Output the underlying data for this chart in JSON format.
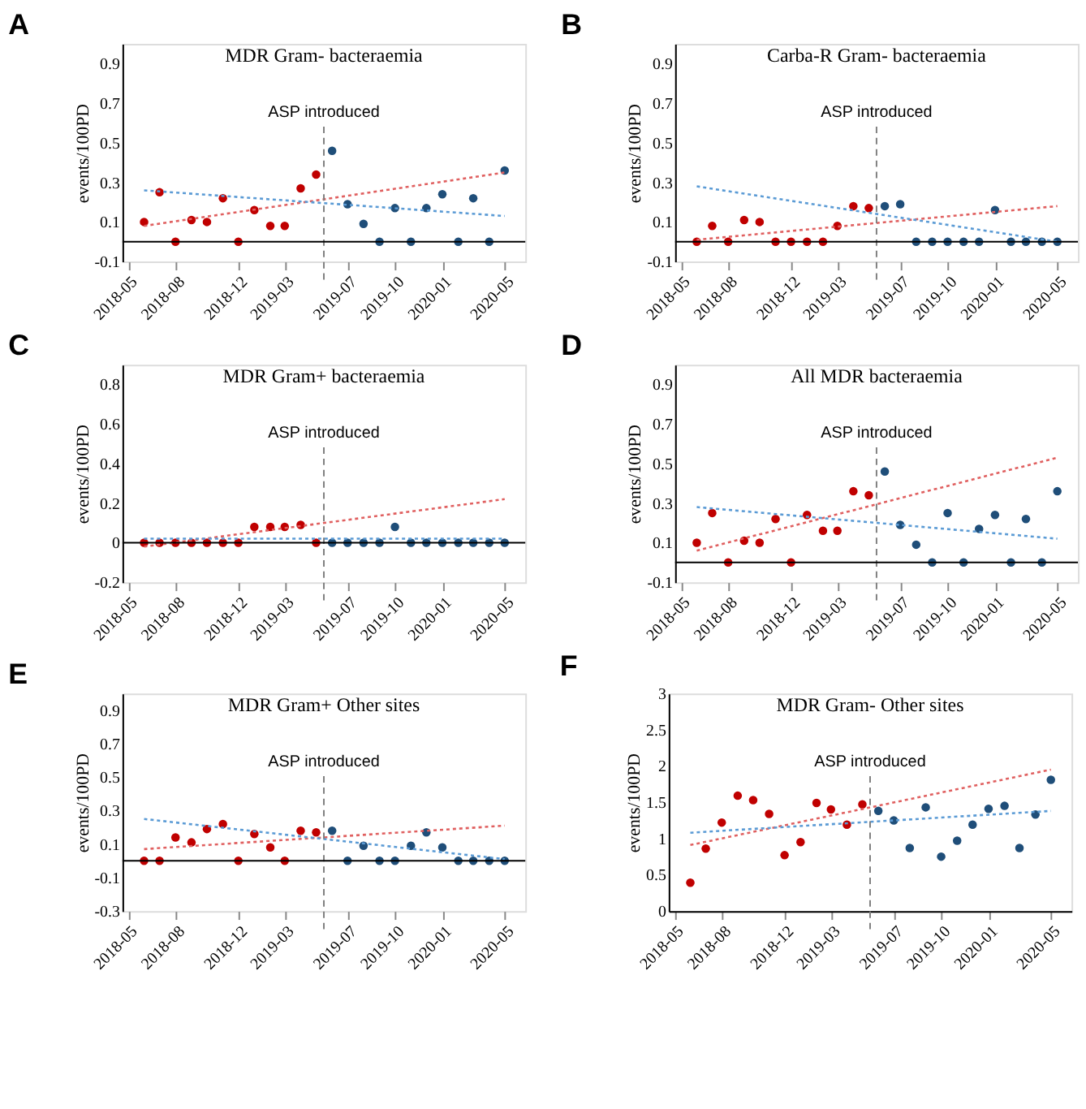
{
  "chart_data": [
    {
      "type": "scatter",
      "title": "MDR Gram- bacteraemia",
      "annotations": [
        "A"
      ],
      "ylabel": "events/100PD",
      "xlim": [
        "2018-04-20",
        "2020-06-10"
      ],
      "xticks": [
        "2018-05",
        "2018-08",
        "2018-12",
        "2019-03",
        "2019-07",
        "2019-10",
        "2020-01",
        "2020-05"
      ],
      "ylim": [
        -0.1,
        1.0
      ],
      "yticks": [
        -0.1,
        0.1,
        0.3,
        0.5,
        0.7,
        0.9
      ],
      "grid": false,
      "legend": false,
      "ref_lines": [
        {
          "axis": "x",
          "value": "2019-05-16",
          "label": "ASP introduced",
          "line_style": "dashed",
          "color": "#808080"
        },
        {
          "axis": "y",
          "value": 0,
          "line_style": "solid",
          "color": "#000000"
        }
      ],
      "series": [
        {
          "marker": "circle",
          "color": "#c00000",
          "x": [
            "2018-06",
            "2018-07",
            "2018-08",
            "2018-09",
            "2018-10",
            "2018-11",
            "2018-12",
            "2019-01",
            "2019-02",
            "2019-03",
            "2019-04",
            "2019-05"
          ],
          "values": [
            0.1,
            0.25,
            0,
            0.11,
            0.1,
            0.22,
            0,
            0.16,
            0.08,
            0.08,
            0.27,
            0.34
          ]
        },
        {
          "marker": "circle",
          "color": "#1f4e79",
          "x": [
            "2019-06",
            "2019-07",
            "2019-08",
            "2019-09",
            "2019-10",
            "2019-11",
            "2019-12",
            "2020-01",
            "2020-02",
            "2020-03",
            "2020-04",
            "2020-05"
          ],
          "values": [
            0.46,
            0.19,
            0.09,
            0,
            0.17,
            0,
            0.17,
            0.24,
            0,
            0.22,
            0,
            0.36
          ]
        },
        {
          "type": "line",
          "marker": "none",
          "line_style": "dotted",
          "color": "#e06060",
          "x": [
            "2018-06",
            "2020-05"
          ],
          "values": [
            0.08,
            0.35
          ]
        },
        {
          "type": "line",
          "marker": "none",
          "line_style": "dotted",
          "color": "#5b9bd5",
          "x": [
            "2018-06",
            "2020-05"
          ],
          "values": [
            0.26,
            0.13
          ]
        }
      ]
    },
    {
      "type": "scatter",
      "title": "Carba-R Gram- bacteraemia",
      "annotations": [
        "B"
      ],
      "ylabel": "events/100PD",
      "xlim": [
        "2018-04-20",
        "2020-06-10"
      ],
      "xticks": [
        "2018-05",
        "2018-08",
        "2018-12",
        "2019-03",
        "2019-07",
        "2019-10",
        "2020-01",
        "2020-05"
      ],
      "ylim": [
        -0.1,
        1.0
      ],
      "yticks": [
        -0.1,
        0.1,
        0.3,
        0.5,
        0.7,
        0.9
      ],
      "grid": false,
      "legend": false,
      "ref_lines": [
        {
          "axis": "x",
          "value": "2019-05-16",
          "label": "ASP introduced",
          "line_style": "dashed",
          "color": "#808080"
        },
        {
          "axis": "y",
          "value": 0,
          "line_style": "solid",
          "color": "#000000"
        }
      ],
      "series": [
        {
          "marker": "circle",
          "color": "#c00000",
          "x": [
            "2018-06",
            "2018-07",
            "2018-08",
            "2018-09",
            "2018-10",
            "2018-11",
            "2018-12",
            "2019-01",
            "2019-02",
            "2019-03",
            "2019-04",
            "2019-05"
          ],
          "values": [
            0,
            0.08,
            0,
            0.11,
            0.1,
            0,
            0,
            0,
            0,
            0.08,
            0.18,
            0.17
          ]
        },
        {
          "marker": "circle",
          "color": "#1f4e79",
          "x": [
            "2019-06",
            "2019-07",
            "2019-08",
            "2019-09",
            "2019-10",
            "2019-11",
            "2019-12",
            "2020-01",
            "2020-02",
            "2020-03",
            "2020-04",
            "2020-05"
          ],
          "values": [
            0.18,
            0.19,
            0,
            0,
            0,
            0,
            0,
            0.16,
            0,
            0,
            0,
            0
          ]
        },
        {
          "type": "line",
          "marker": "none",
          "line_style": "dotted",
          "color": "#e06060",
          "x": [
            "2018-06",
            "2020-05"
          ],
          "values": [
            0.01,
            0.18
          ]
        },
        {
          "type": "line",
          "marker": "none",
          "line_style": "dotted",
          "color": "#5b9bd5",
          "x": [
            "2018-06",
            "2020-05"
          ],
          "values": [
            0.28,
            0.0
          ]
        }
      ]
    },
    {
      "type": "scatter",
      "title": "MDR Gram+ bacteraemia",
      "annotations": [
        "C"
      ],
      "ylabel": "events/100PD",
      "xlim": [
        "2018-04-20",
        "2020-06-10"
      ],
      "xticks": [
        "2018-05",
        "2018-08",
        "2018-12",
        "2019-03",
        "2019-07",
        "2019-10",
        "2020-01",
        "2020-05"
      ],
      "ylim": [
        -0.2,
        0.9
      ],
      "yticks": [
        -0.2,
        0,
        0.2,
        0.4,
        0.6,
        0.8
      ],
      "grid": false,
      "legend": false,
      "ref_lines": [
        {
          "axis": "x",
          "value": "2019-05-16",
          "label": "ASP introduced",
          "line_style": "dashed",
          "color": "#808080"
        },
        {
          "axis": "y",
          "value": 0,
          "line_style": "solid",
          "color": "#000000"
        }
      ],
      "series": [
        {
          "marker": "circle",
          "color": "#c00000",
          "x": [
            "2018-06",
            "2018-07",
            "2018-08",
            "2018-09",
            "2018-10",
            "2018-11",
            "2018-12",
            "2019-01",
            "2019-02",
            "2019-03",
            "2019-04",
            "2019-05"
          ],
          "values": [
            0,
            0,
            0,
            0,
            0,
            0,
            0,
            0.08,
            0.08,
            0.08,
            0.09,
            0
          ]
        },
        {
          "marker": "circle",
          "color": "#1f4e79",
          "x": [
            "2019-06",
            "2019-07",
            "2019-08",
            "2019-09",
            "2019-10",
            "2019-11",
            "2019-12",
            "2020-01",
            "2020-02",
            "2020-03",
            "2020-04",
            "2020-05"
          ],
          "values": [
            0,
            0,
            0,
            0,
            0.08,
            0,
            0,
            0,
            0,
            0,
            0,
            0
          ]
        },
        {
          "type": "line",
          "marker": "none",
          "line_style": "dotted",
          "color": "#e06060",
          "x": [
            "2018-06",
            "2020-05"
          ],
          "values": [
            -0.02,
            0.22
          ]
        },
        {
          "type": "line",
          "marker": "none",
          "line_style": "dotted",
          "color": "#5b9bd5",
          "x": [
            "2018-06",
            "2020-05"
          ],
          "values": [
            0.02,
            0.02
          ]
        }
      ]
    },
    {
      "type": "scatter",
      "title": "All MDR bacteraemia",
      "annotations": [
        "D"
      ],
      "ylabel": "events/100PD",
      "xlim": [
        "2018-04-20",
        "2020-06-10"
      ],
      "xticks": [
        "2018-05",
        "2018-08",
        "2018-12",
        "2019-03",
        "2019-07",
        "2019-10",
        "2020-01",
        "2020-05"
      ],
      "ylim": [
        -0.1,
        1.0
      ],
      "yticks": [
        -0.1,
        0.1,
        0.3,
        0.5,
        0.7,
        0.9
      ],
      "grid": false,
      "legend": false,
      "ref_lines": [
        {
          "axis": "x",
          "value": "2019-05-16",
          "label": "ASP introduced",
          "line_style": "dashed",
          "color": "#808080"
        },
        {
          "axis": "y",
          "value": 0,
          "line_style": "solid",
          "color": "#000000"
        }
      ],
      "series": [
        {
          "marker": "circle",
          "color": "#c00000",
          "x": [
            "2018-06",
            "2018-07",
            "2018-08",
            "2018-09",
            "2018-10",
            "2018-11",
            "2018-12",
            "2019-01",
            "2019-02",
            "2019-03",
            "2019-04",
            "2019-05"
          ],
          "values": [
            0.1,
            0.25,
            0,
            0.11,
            0.1,
            0.22,
            0,
            0.24,
            0.16,
            0.16,
            0.36,
            0.34
          ]
        },
        {
          "marker": "circle",
          "color": "#1f4e79",
          "x": [
            "2019-06",
            "2019-07",
            "2019-08",
            "2019-09",
            "2019-10",
            "2019-11",
            "2019-12",
            "2020-01",
            "2020-02",
            "2020-03",
            "2020-04",
            "2020-05"
          ],
          "values": [
            0.46,
            0.19,
            0.09,
            0,
            0.25,
            0,
            0.17,
            0.24,
            0,
            0.22,
            0,
            0.36
          ]
        },
        {
          "type": "line",
          "marker": "none",
          "line_style": "dotted",
          "color": "#e06060",
          "x": [
            "2018-06",
            "2020-05"
          ],
          "values": [
            0.06,
            0.53
          ]
        },
        {
          "type": "line",
          "marker": "none",
          "line_style": "dotted",
          "color": "#5b9bd5",
          "x": [
            "2018-06",
            "2020-05"
          ],
          "values": [
            0.28,
            0.12
          ]
        }
      ]
    },
    {
      "type": "scatter",
      "title": "MDR Gram+ Other sites",
      "annotations": [
        "E"
      ],
      "ylabel": "events/100PD",
      "xlim": [
        "2018-04-20",
        "2020-06-10"
      ],
      "xticks": [
        "2018-05",
        "2018-08",
        "2018-12",
        "2019-03",
        "2019-07",
        "2019-10",
        "2020-01",
        "2020-05"
      ],
      "ylim": [
        -0.3,
        1.0
      ],
      "yticks": [
        -0.3,
        -0.1,
        0.1,
        0.3,
        0.5,
        0.7,
        0.9
      ],
      "grid": false,
      "legend": false,
      "ref_lines": [
        {
          "axis": "x",
          "value": "2019-05-16",
          "label": "ASP introduced",
          "line_style": "dashed",
          "color": "#808080"
        },
        {
          "axis": "y",
          "value": 0,
          "line_style": "solid",
          "color": "#000000"
        }
      ],
      "series": [
        {
          "marker": "circle",
          "color": "#c00000",
          "x": [
            "2018-06",
            "2018-07",
            "2018-08",
            "2018-09",
            "2018-10",
            "2018-11",
            "2018-12",
            "2019-01",
            "2019-02",
            "2019-03",
            "2019-04",
            "2019-05"
          ],
          "values": [
            0,
            0,
            0.14,
            0.11,
            0.19,
            0.22,
            0,
            0.16,
            0.08,
            0,
            0.18,
            0.17
          ]
        },
        {
          "marker": "circle",
          "color": "#1f4e79",
          "x": [
            "2019-06",
            "2019-07",
            "2019-08",
            "2019-09",
            "2019-10",
            "2019-11",
            "2019-12",
            "2020-01",
            "2020-02",
            "2020-03",
            "2020-04",
            "2020-05"
          ],
          "values": [
            0.18,
            0,
            0.09,
            0,
            0,
            0.09,
            0.17,
            0.08,
            0,
            0,
            0,
            0
          ]
        },
        {
          "type": "line",
          "marker": "none",
          "line_style": "dotted",
          "color": "#e06060",
          "x": [
            "2018-06",
            "2020-05"
          ],
          "values": [
            0.07,
            0.21
          ]
        },
        {
          "type": "line",
          "marker": "none",
          "line_style": "dotted",
          "color": "#5b9bd5",
          "x": [
            "2018-06",
            "2020-05"
          ],
          "values": [
            0.25,
            0.01
          ]
        }
      ]
    },
    {
      "type": "scatter",
      "title": "MDR Gram- Other sites",
      "annotations": [
        "F"
      ],
      "ylabel": "events/100PD",
      "xlim": [
        "2018-04-20",
        "2020-06-10"
      ],
      "xticks": [
        "2018-05",
        "2018-08",
        "2018-12",
        "2019-03",
        "2019-07",
        "2019-10",
        "2020-01",
        "2020-05"
      ],
      "ylim": [
        0,
        3
      ],
      "yticks": [
        0,
        0.5,
        1,
        1.5,
        2,
        2.5,
        3
      ],
      "grid": false,
      "legend": false,
      "ref_lines": [
        {
          "axis": "x",
          "value": "2019-05-16",
          "label": "ASP introduced",
          "line_style": "dashed",
          "color": "#808080"
        }
      ],
      "series": [
        {
          "marker": "circle",
          "color": "#c00000",
          "x": [
            "2018-06",
            "2018-07",
            "2018-08",
            "2018-09",
            "2018-10",
            "2018-11",
            "2018-12",
            "2019-01",
            "2019-02",
            "2019-03",
            "2019-04",
            "2019-05"
          ],
          "values": [
            0.39,
            0.86,
            1.22,
            1.59,
            1.53,
            1.34,
            0.77,
            0.95,
            1.49,
            1.4,
            1.19,
            1.47
          ]
        },
        {
          "marker": "circle",
          "color": "#1f4e79",
          "x": [
            "2019-06",
            "2019-07",
            "2019-08",
            "2019-09",
            "2019-10",
            "2019-11",
            "2019-12",
            "2020-01",
            "2020-02",
            "2020-03",
            "2020-04",
            "2020-05"
          ],
          "values": [
            1.38,
            1.25,
            0.87,
            1.43,
            0.75,
            0.97,
            1.19,
            1.41,
            1.45,
            0.87,
            1.33,
            1.81
          ]
        },
        {
          "type": "line",
          "marker": "none",
          "line_style": "dotted",
          "color": "#e06060",
          "x": [
            "2018-06",
            "2020-05"
          ],
          "values": [
            0.91,
            1.95
          ]
        },
        {
          "type": "line",
          "marker": "none",
          "line_style": "dotted",
          "color": "#5b9bd5",
          "x": [
            "2018-06",
            "2020-05"
          ],
          "values": [
            1.08,
            1.38
          ]
        }
      ]
    }
  ]
}
